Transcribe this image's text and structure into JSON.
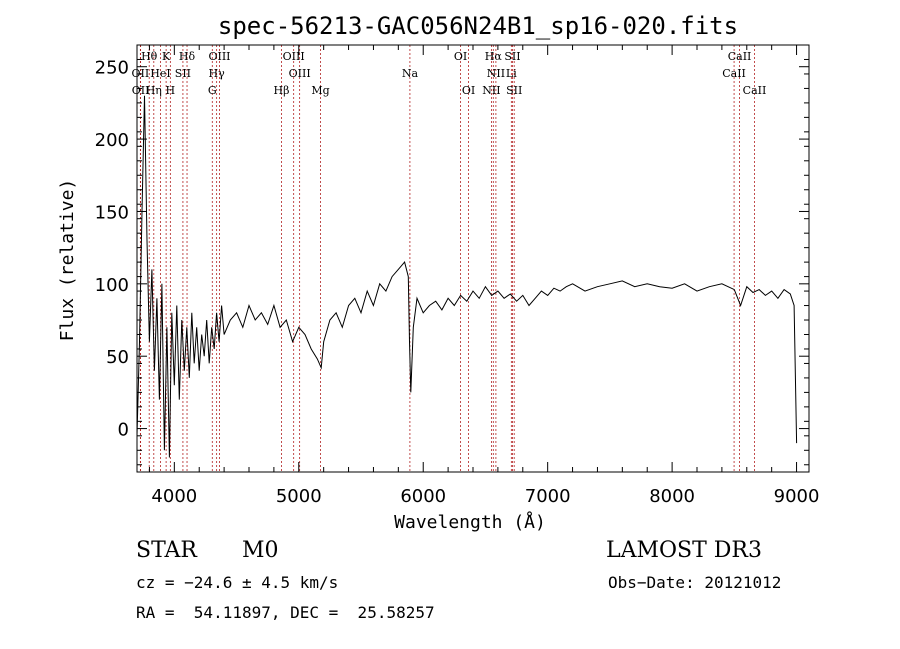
{
  "chart_data": {
    "type": "line",
    "title": "spec-56213-GAC056N24B1_sp16-020.fits",
    "xlabel": "Wavelength (Å)",
    "ylabel": "Flux (relative)",
    "xlim": [
      3700,
      9100
    ],
    "ylim": [
      -30,
      265
    ],
    "xticks": [
      4000,
      5000,
      6000,
      7000,
      8000,
      9000
    ],
    "xtick_labels": [
      "4000",
      "5000",
      "6000",
      "7000",
      "8000",
      "9000"
    ],
    "yticks": [
      0,
      50,
      100,
      150,
      200,
      250
    ],
    "ytick_labels": [
      "0",
      "50",
      "100",
      "150",
      "200",
      "250"
    ],
    "grid": false,
    "series": [
      {
        "name": "spectrum",
        "x": [
          3700,
          3720,
          3740,
          3760,
          3780,
          3800,
          3820,
          3840,
          3860,
          3880,
          3900,
          3920,
          3940,
          3960,
          3980,
          4000,
          4020,
          4040,
          4060,
          4080,
          4100,
          4120,
          4140,
          4160,
          4180,
          4200,
          4220,
          4240,
          4260,
          4280,
          4300,
          4320,
          4340,
          4360,
          4380,
          4400,
          4450,
          4500,
          4550,
          4600,
          4650,
          4700,
          4750,
          4800,
          4850,
          4900,
          4950,
          5000,
          5050,
          5100,
          5150,
          5180,
          5200,
          5250,
          5300,
          5350,
          5400,
          5450,
          5500,
          5550,
          5600,
          5650,
          5700,
          5750,
          5800,
          5850,
          5880,
          5890,
          5900,
          5920,
          5950,
          6000,
          6050,
          6100,
          6150,
          6200,
          6250,
          6300,
          6350,
          6400,
          6450,
          6500,
          6550,
          6600,
          6650,
          6700,
          6750,
          6800,
          6850,
          6900,
          6950,
          7000,
          7050,
          7100,
          7150,
          7200,
          7300,
          7400,
          7500,
          7600,
          7700,
          7800,
          7900,
          8000,
          8100,
          8200,
          8300,
          8400,
          8500,
          8550,
          8600,
          8650,
          8700,
          8750,
          8800,
          8850,
          8900,
          8950,
          8980,
          9000
        ],
        "y": [
          -5,
          60,
          150,
          230,
          130,
          60,
          110,
          40,
          90,
          20,
          100,
          -15,
          70,
          -20,
          80,
          30,
          85,
          20,
          75,
          40,
          70,
          35,
          80,
          45,
          70,
          40,
          65,
          50,
          75,
          45,
          70,
          55,
          80,
          60,
          85,
          65,
          75,
          80,
          70,
          85,
          75,
          80,
          72,
          85,
          70,
          75,
          60,
          70,
          65,
          55,
          48,
          42,
          60,
          75,
          80,
          70,
          85,
          90,
          80,
          95,
          85,
          100,
          95,
          105,
          110,
          115,
          105,
          60,
          25,
          70,
          90,
          80,
          85,
          88,
          82,
          90,
          85,
          92,
          88,
          95,
          90,
          98,
          92,
          95,
          90,
          93,
          88,
          92,
          85,
          90,
          95,
          92,
          97,
          95,
          98,
          100,
          95,
          98,
          100,
          102,
          98,
          100,
          98,
          97,
          100,
          95,
          98,
          100,
          96,
          85,
          98,
          94,
          96,
          92,
          95,
          90,
          96,
          93,
          85,
          -10
        ]
      }
    ],
    "lines": {
      "dark_labels": [
        {
          "label": "Hθ",
          "x": 3798,
          "row": 0
        },
        {
          "label": "K",
          "x": 3934,
          "row": 0
        },
        {
          "label": "Hδ",
          "x": 4102,
          "row": 0
        },
        {
          "label": "OIII",
          "x": 4363,
          "row": 0
        },
        {
          "label": "OIII",
          "x": 4959,
          "row": 0
        },
        {
          "label": "OI",
          "x": 6300,
          "row": 0
        },
        {
          "label": "Hα",
          "x": 6563,
          "row": 0
        },
        {
          "label": "SII",
          "x": 6717,
          "row": 0
        },
        {
          "label": "CaII",
          "x": 8542,
          "row": 0
        },
        {
          "label": "OII",
          "x": 3727,
          "row": 1
        },
        {
          "label": "HeI",
          "x": 3889,
          "row": 1
        },
        {
          "label": "SII",
          "x": 4069,
          "row": 1
        },
        {
          "label": "Hγ",
          "x": 4340,
          "row": 1
        },
        {
          "label": "OIII",
          "x": 5007,
          "row": 1
        },
        {
          "label": "Na",
          "x": 5893,
          "row": 1
        },
        {
          "label": "NII",
          "x": 6584,
          "row": 1
        },
        {
          "label": "Li",
          "x": 6708,
          "row": 1
        },
        {
          "label": "CaII",
          "x": 8498,
          "row": 1
        },
        {
          "label": "OII",
          "x": 3729,
          "row": 2
        },
        {
          "label": "Hη",
          "x": 3835,
          "row": 2
        },
        {
          "label": "H",
          "x": 3968,
          "row": 2
        },
        {
          "label": "G",
          "x": 4305,
          "row": 2
        },
        {
          "label": "Hβ",
          "x": 4861,
          "row": 2
        },
        {
          "label": "Mg",
          "x": 5175,
          "row": 2
        },
        {
          "label": "OI",
          "x": 6364,
          "row": 2
        },
        {
          "label": "NII",
          "x": 6548,
          "row": 2
        },
        {
          "label": "SII",
          "x": 6731,
          "row": 2
        },
        {
          "label": "CaII",
          "x": 8662,
          "row": 2
        }
      ],
      "marker_color": "#b22222"
    }
  },
  "info": {
    "class": "STAR",
    "subclass": "M0",
    "survey": "LAMOST DR3",
    "cz": "cz = −24.6 ± 4.5 km/s",
    "obs_date": "Obs−Date: 20121012",
    "coords": "RA =  54.11897, DEC =  25.58257"
  }
}
